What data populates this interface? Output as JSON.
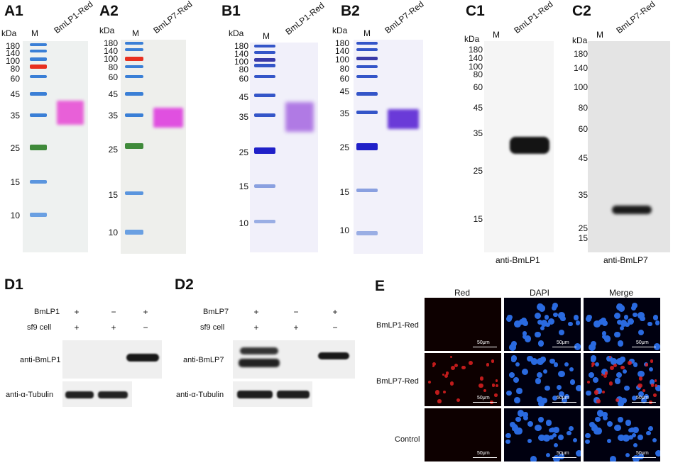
{
  "panels": {
    "A1": {
      "label": "A1",
      "kda": "kDa",
      "marker": "M",
      "lane": "BmLP1-Red",
      "mw": [
        "180",
        "140",
        "100",
        "80",
        "60",
        "45",
        "35",
        "25",
        "15",
        "10"
      ]
    },
    "A2": {
      "label": "A2",
      "kda": "kDa",
      "marker": "M",
      "lane": "BmLP7-Red",
      "mw": [
        "180",
        "140",
        "100",
        "80",
        "60",
        "45",
        "35",
        "25",
        "15",
        "10"
      ]
    },
    "B1": {
      "label": "B1",
      "kda": "kDa",
      "marker": "M",
      "lane": "BmLP1-Red",
      "mw": [
        "180",
        "140",
        "100",
        "80",
        "60",
        "45",
        "35",
        "25",
        "15",
        "10"
      ]
    },
    "B2": {
      "label": "B2",
      "kda": "kDa",
      "marker": "M",
      "lane": "BmLP7-Red",
      "mw": [
        "180",
        "140",
        "100",
        "80",
        "60",
        "45",
        "35",
        "25",
        "15",
        "10"
      ]
    },
    "C1": {
      "label": "C1",
      "kda": "kDa",
      "marker": "M",
      "lane": "BmLP1-Red",
      "mw": [
        "180",
        "140",
        "100",
        "80",
        "60",
        "45",
        "35",
        "25",
        "15"
      ],
      "caption": "anti-BmLP1"
    },
    "C2": {
      "label": "C2",
      "kda": "kDa",
      "marker": "M",
      "lane": "BmLP7-Red",
      "mw": [
        "180",
        "140",
        "100",
        "80",
        "60",
        "45",
        "35",
        "25",
        "15"
      ],
      "caption": "anti-BmLP7"
    },
    "D1": {
      "label": "D1",
      "row1": "BmLP1",
      "row2": "sf9 cell",
      "signs1": [
        "+",
        "−",
        "+"
      ],
      "signs2": [
        "+",
        "+",
        "−"
      ],
      "antibody": "anti-BmLP1",
      "loading": "anti-α-Tubulin"
    },
    "D2": {
      "label": "D2",
      "row1": "BmLP7",
      "row2": "sf9 cell",
      "signs1": [
        "+",
        "−",
        "+"
      ],
      "signs2": [
        "+",
        "+",
        "−"
      ],
      "antibody": "anti-BmLP7",
      "loading": "anti-α-Tubulin"
    },
    "E": {
      "label": "E",
      "cols": [
        "Red",
        "DAPI",
        "Merge"
      ],
      "rows": [
        "BmLP1-Red",
        "BmLP7-Red",
        "Control"
      ],
      "scale": "50μm"
    }
  },
  "colors": {
    "marker_blue": "#3a7fd6",
    "marker_red": "#e83020",
    "marker_green": "#3f8a3a",
    "magenta": "#e040d0",
    "violet": "#6a3ad8",
    "dapi": "#2a6ae0"
  }
}
